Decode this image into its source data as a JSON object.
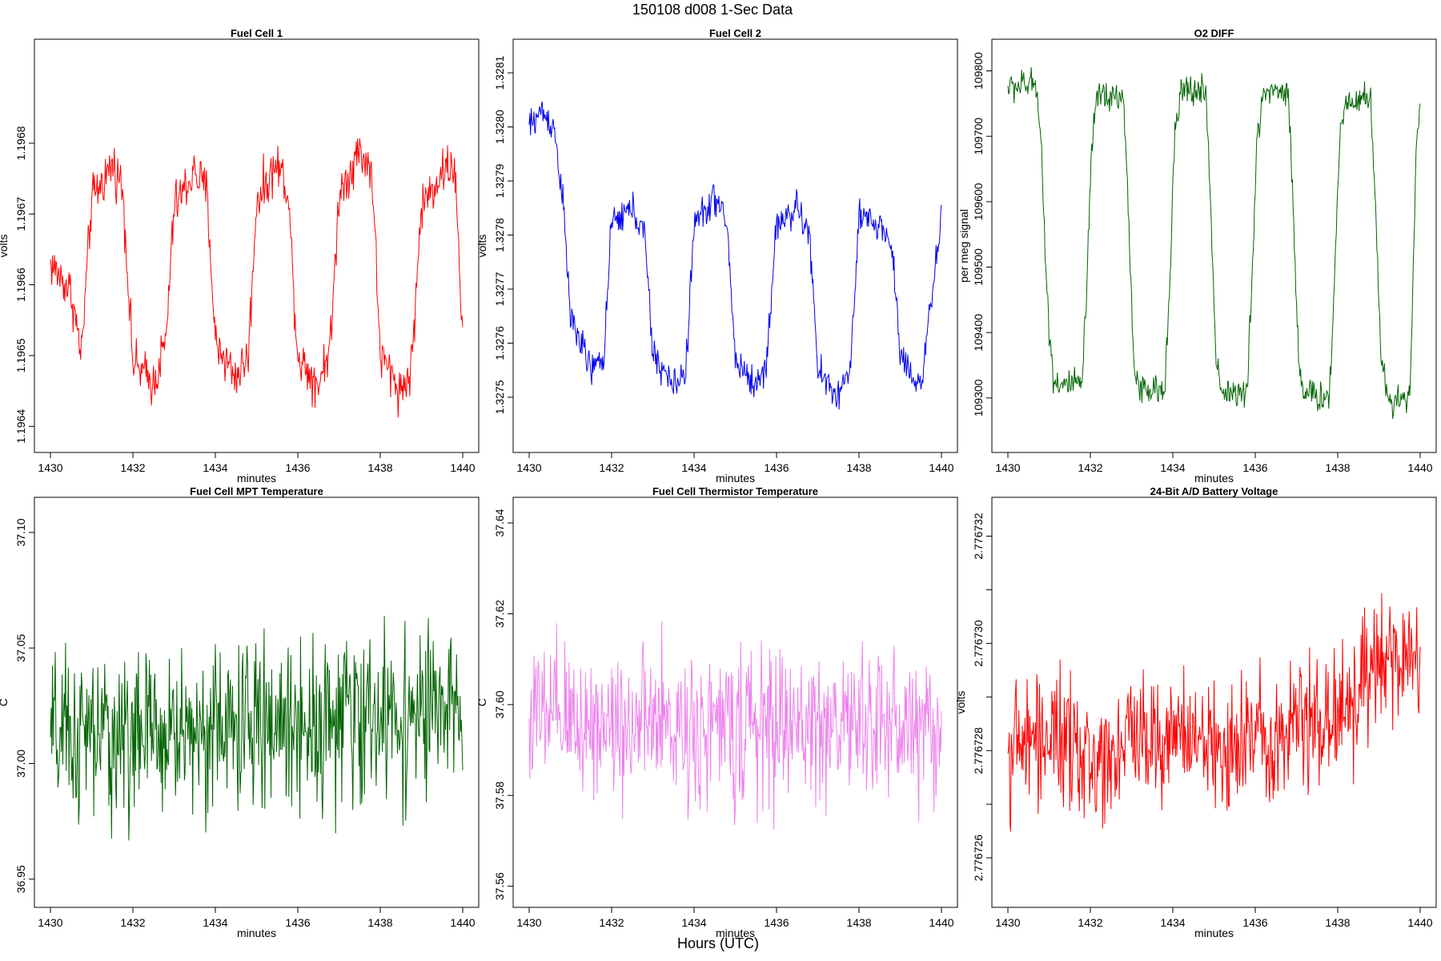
{
  "figure": {
    "title": "150108    d008    1-Sec Data",
    "xlabel": "Hours (UTC)"
  },
  "chart_data": [
    {
      "type": "line",
      "title": "Fuel Cell 1",
      "xlabel": "minutes",
      "ylabel": "volts",
      "color": "#ff0000",
      "xlim": [
        1430,
        1440
      ],
      "xticks": [
        1430,
        1432,
        1434,
        1436,
        1438,
        1440
      ],
      "ylim": [
        1.19638,
        1.19693
      ],
      "yticks": [
        1.1964,
        1.1965,
        1.1966,
        1.1967,
        1.1968
      ],
      "yticklabels": [
        "1.1964",
        "1.1965",
        "1.1966",
        "1.1967",
        "1.1968"
      ],
      "x": [
        1430.0,
        1430.5,
        1430.75,
        1431.0,
        1431.5,
        1431.75,
        1432.0,
        1432.5,
        1432.8,
        1433.0,
        1433.5,
        1433.8,
        1434.0,
        1434.5,
        1434.8,
        1435.0,
        1435.5,
        1435.75,
        1436.0,
        1436.5,
        1436.8,
        1437.0,
        1437.5,
        1437.8,
        1438.0,
        1438.5,
        1438.75,
        1439.0,
        1439.5,
        1439.8,
        1440.0
      ],
      "values": [
        1.19663,
        1.19659,
        1.1965,
        1.19672,
        1.19677,
        1.19674,
        1.19649,
        1.19646,
        1.19652,
        1.19671,
        1.19676,
        1.19673,
        1.19652,
        1.19647,
        1.1965,
        1.19672,
        1.19677,
        1.19674,
        1.1965,
        1.19646,
        1.19652,
        1.19673,
        1.19679,
        1.19676,
        1.1965,
        1.19645,
        1.19648,
        1.19671,
        1.19676,
        1.19677,
        1.19652
      ],
      "noise": 2.8e-05
    },
    {
      "type": "line",
      "title": "Fuel Cell 2",
      "xlabel": "minutes",
      "ylabel": "volts",
      "color": "#0000ee",
      "xlim": [
        1430,
        1440
      ],
      "xticks": [
        1430,
        1432,
        1434,
        1436,
        1438,
        1440
      ],
      "ylim": [
        1.32742,
        1.32814
      ],
      "yticks": [
        1.3275,
        1.3276,
        1.3277,
        1.3278,
        1.3279,
        1.328,
        1.3281
      ],
      "yticklabels": [
        "1.3275",
        "1.3276",
        "1.3277",
        "1.3278",
        "1.3279",
        "1.3280",
        "1.3281"
      ],
      "x": [
        1430.0,
        1430.3,
        1430.6,
        1430.8,
        1431.0,
        1431.5,
        1431.8,
        1432.0,
        1432.5,
        1432.8,
        1433.0,
        1433.5,
        1433.8,
        1434.0,
        1434.5,
        1434.8,
        1435.0,
        1435.5,
        1435.75,
        1436.0,
        1436.5,
        1436.8,
        1437.0,
        1437.5,
        1437.8,
        1438.0,
        1438.5,
        1438.8,
        1439.0,
        1439.5,
        1439.8,
        1440.0
      ],
      "values": [
        1.328,
        1.32803,
        1.328,
        1.32788,
        1.32765,
        1.32755,
        1.32757,
        1.32782,
        1.32785,
        1.3278,
        1.32758,
        1.32752,
        1.32755,
        1.32782,
        1.32787,
        1.32782,
        1.32757,
        1.32752,
        1.32756,
        1.32782,
        1.32785,
        1.3278,
        1.32755,
        1.3275,
        1.32756,
        1.32783,
        1.32782,
        1.32778,
        1.32758,
        1.32752,
        1.3277,
        1.32784
      ],
      "noise": 2.6e-05
    },
    {
      "type": "line",
      "title": "O2 DIFF",
      "xlabel": "minutes",
      "ylabel": "per meg signal",
      "color": "#006400",
      "xlim": [
        1430,
        1440
      ],
      "xticks": [
        1430,
        1432,
        1434,
        1436,
        1438,
        1440
      ],
      "ylim": [
        109235,
        109830
      ],
      "yticks": [
        109300,
        109400,
        109500,
        109600,
        109700,
        109800
      ],
      "yticklabels": [
        "109300",
        "109400",
        "109500",
        "109600",
        "109700",
        "109800"
      ],
      "x": [
        1430.0,
        1430.7,
        1430.8,
        1430.95,
        1431.1,
        1431.3,
        1431.8,
        1431.9,
        1432.05,
        1432.2,
        1432.8,
        1432.9,
        1433.05,
        1433.2,
        1433.8,
        1433.9,
        1434.05,
        1434.2,
        1434.8,
        1434.9,
        1435.05,
        1435.2,
        1435.8,
        1435.9,
        1436.05,
        1436.2,
        1436.8,
        1436.9,
        1437.05,
        1437.2,
        1437.8,
        1437.9,
        1438.05,
        1438.2,
        1438.8,
        1438.9,
        1439.05,
        1439.2,
        1439.75,
        1439.9,
        1440.0
      ],
      "values": [
        109775,
        109780,
        109700,
        109450,
        109330,
        109320,
        109320,
        109450,
        109700,
        109765,
        109760,
        109620,
        109360,
        109310,
        109310,
        109450,
        109700,
        109768,
        109770,
        109620,
        109360,
        109310,
        109305,
        109450,
        109700,
        109770,
        109770,
        109620,
        109360,
        109305,
        109300,
        109450,
        109700,
        109755,
        109760,
        109620,
        109360,
        109300,
        109300,
        109680,
        109740
      ],
      "noise": 20
    },
    {
      "type": "line",
      "title": "Fuel Cell MPT Temperature",
      "xlabel": "minutes",
      "ylabel": "C",
      "color": "#006400",
      "xlim": [
        1430,
        1440
      ],
      "xticks": [
        1430,
        1432,
        1434,
        1436,
        1438,
        1440
      ],
      "ylim": [
        36.943,
        37.11
      ],
      "yticks": [
        36.95,
        37.0,
        37.05,
        37.1
      ],
      "yticklabels": [
        "36.95",
        "37.00",
        "37.05",
        "37.10"
      ],
      "x": [
        1430,
        1432,
        1434,
        1436,
        1438,
        1440
      ],
      "values": [
        37.01,
        37.012,
        37.015,
        37.018,
        37.02,
        37.022
      ],
      "noise": 0.03
    },
    {
      "type": "line",
      "title": "Fuel Cell Thermistor Temperature",
      "xlabel": "minutes",
      "ylabel": "C",
      "color": "#ee82ee",
      "xlim": [
        1430,
        1440
      ],
      "xticks": [
        1430,
        1432,
        1434,
        1436,
        1438,
        1440
      ],
      "ylim": [
        37.558,
        37.643
      ],
      "yticks": [
        37.56,
        37.58,
        37.6,
        37.62,
        37.64
      ],
      "yticklabels": [
        "37.56",
        "37.58",
        "37.60",
        "37.62",
        "37.64"
      ],
      "x": [
        1430,
        1432,
        1434,
        1436,
        1438,
        1440
      ],
      "values": [
        37.597,
        37.596,
        37.595,
        37.595,
        37.596,
        37.595
      ],
      "noise": 0.014
    },
    {
      "type": "line",
      "title": "24-Bit A/D Battery Voltage",
      "xlabel": "minutes",
      "ylabel": "volts",
      "color": "#ff0000",
      "xlim": [
        1430,
        1440
      ],
      "xticks": [
        1430,
        1432,
        1434,
        1436,
        1438,
        1440
      ],
      "ylim": [
        2.7767253,
        2.7767325
      ],
      "yticks": [
        2.776726,
        2.776727,
        2.776728,
        2.776729,
        2.77673,
        2.776731,
        2.776732
      ],
      "yticklabels": [
        "2.776726",
        "",
        "2.776728",
        "",
        "2.776730",
        "",
        "2.776732"
      ],
      "x": [
        1430,
        1431,
        1432,
        1433,
        1434,
        1435,
        1436,
        1437,
        1438,
        1439,
        1440
      ],
      "values": [
        2.776728,
        2.7767283,
        2.7767277,
        2.7767283,
        2.7767283,
        2.776728,
        2.7767283,
        2.7767285,
        2.7767287,
        2.7767295,
        2.7767298
      ],
      "noise": 1e-06
    }
  ]
}
